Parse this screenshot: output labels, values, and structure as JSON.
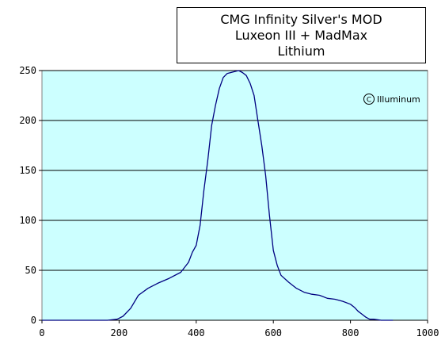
{
  "chart_data": {
    "type": "line",
    "title_lines": [
      "CMG Infinity  Silver's MOD",
      "Luxeon III + MadMax",
      "Lithium"
    ],
    "xlabel": "",
    "ylabel": "",
    "xlim": [
      0,
      1000
    ],
    "ylim": [
      0,
      250
    ],
    "x_ticks": [
      0,
      200,
      400,
      600,
      800,
      1000
    ],
    "y_ticks": [
      0,
      50,
      100,
      150,
      200,
      250
    ],
    "grid": "horizontal",
    "legend": "none",
    "plot_background": "#ccffff",
    "line_color": "#000080",
    "watermark": "Illuminum",
    "series": [
      {
        "x": [
          0,
          100,
          170,
          195,
          210,
          230,
          250,
          275,
          300,
          330,
          360,
          380,
          390,
          400,
          410,
          420,
          430,
          440,
          450,
          460,
          470,
          480,
          490,
          500,
          510,
          520,
          530,
          540,
          550,
          560,
          570,
          580,
          590,
          600,
          610,
          620,
          640,
          660,
          680,
          700,
          720,
          740,
          760,
          780,
          800,
          810,
          820,
          830,
          840,
          850,
          860,
          880,
          900,
          910
        ],
        "y": [
          0,
          0,
          0,
          1,
          4,
          12,
          25,
          32,
          37,
          42,
          48,
          58,
          68,
          75,
          95,
          130,
          160,
          195,
          215,
          232,
          243,
          247,
          248,
          249,
          250,
          248,
          245,
          237,
          225,
          200,
          175,
          145,
          105,
          70,
          55,
          45,
          38,
          32,
          28,
          26,
          25,
          22,
          21,
          19,
          16,
          13,
          9,
          6,
          3,
          1,
          1,
          0,
          0,
          0
        ]
      }
    ]
  }
}
